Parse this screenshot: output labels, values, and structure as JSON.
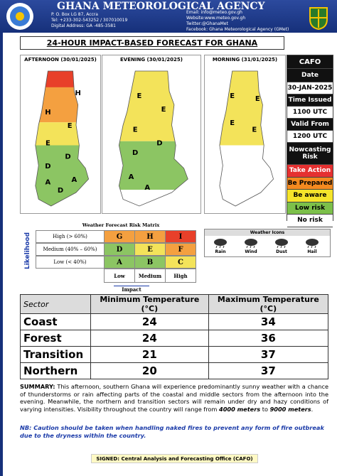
{
  "header": {
    "title": "GHANA METEOROLOGICAL AGENCY",
    "address": [
      "P. O. Box LG 87, Accra",
      "Tel: +233-302-543252 / 307010019",
      "Digital Address: GA -485-3581"
    ],
    "contacts": [
      "Email: info@meteo.gov.gh",
      "Website:www.meteo.gov.gh",
      "Twitter:@GhanaMet",
      "Facebook: Ghana Meteorological Agency (GMet)"
    ]
  },
  "title": "24-HOUR IMPACT-BASED FORECAST FOR GHANA",
  "maps": [
    {
      "period": "AFTERNOON (30/01/2025)",
      "labels": [
        "H",
        "H",
        "E",
        "E",
        "D",
        "D",
        "A",
        "D",
        "A"
      ]
    },
    {
      "period": "EVENING (30/01/2025)",
      "labels": [
        "E",
        "E",
        "E",
        "D",
        "D",
        "A",
        "A"
      ]
    },
    {
      "period": "MORNING (31/01/2025)",
      "labels": [
        "E",
        "E",
        "E",
        "E"
      ]
    }
  ],
  "legend": {
    "header": "CAFO",
    "items": [
      "Date",
      "30-JAN-2025",
      "Time Issued",
      "1100 UTC",
      "Valid From",
      "1200 UTC",
      "Nowcasting Risk"
    ],
    "risks": [
      "Take Action",
      "Be Prepared",
      "Be aware",
      "Low risk",
      "No risk"
    ]
  },
  "matrix": {
    "title": "Weather Forecast Risk Matrix",
    "likelihood": "Likelihood",
    "rows": [
      {
        "label": "High (> 60%)",
        "cells": [
          "G",
          "H",
          "I"
        ]
      },
      {
        "label": "Medium (40% – 60%)",
        "cells": [
          "D",
          "E",
          "F"
        ]
      },
      {
        "label": "Low (< 40%)",
        "cells": [
          "A",
          "B",
          "C"
        ]
      }
    ],
    "columns": [
      "Low",
      "Medium",
      "High"
    ],
    "impact": "Impact"
  },
  "weather_icons": {
    "title": "Weather Icons",
    "items": [
      "Rain",
      "Wind",
      "Dust",
      "Hail"
    ]
  },
  "table": {
    "header": [
      "Sector",
      "Minimum Temperature (°C)",
      "Maximum Temperature (°C)"
    ],
    "rows": [
      [
        "Coast",
        24,
        34
      ],
      [
        "Forest",
        24,
        36
      ],
      [
        "Transition",
        21,
        37
      ],
      [
        "Northern",
        20,
        37
      ]
    ]
  },
  "summary": {
    "label": "SUMMARY:",
    "parts": [
      " This afternoon, southern Ghana will experience predominantly sunny weather with a chance of thunderstorms or rain affecting parts of the coastal and middle sectors from the afternoon into the evening. Meanwhile, the northern and transition sectors will remain under dry and hazy conditions of varying intensities. Visibility throughout the country will range from ",
      "4000 meters",
      " to ",
      "9000 meters",
      "."
    ]
  },
  "note": "NB: Caution should be taken when handling naked fires to prevent any form of fire outbreak due to the dryness within the country.",
  "footer": "SIGNED: Central Analysis and Forecasting Office (CAFO)"
}
